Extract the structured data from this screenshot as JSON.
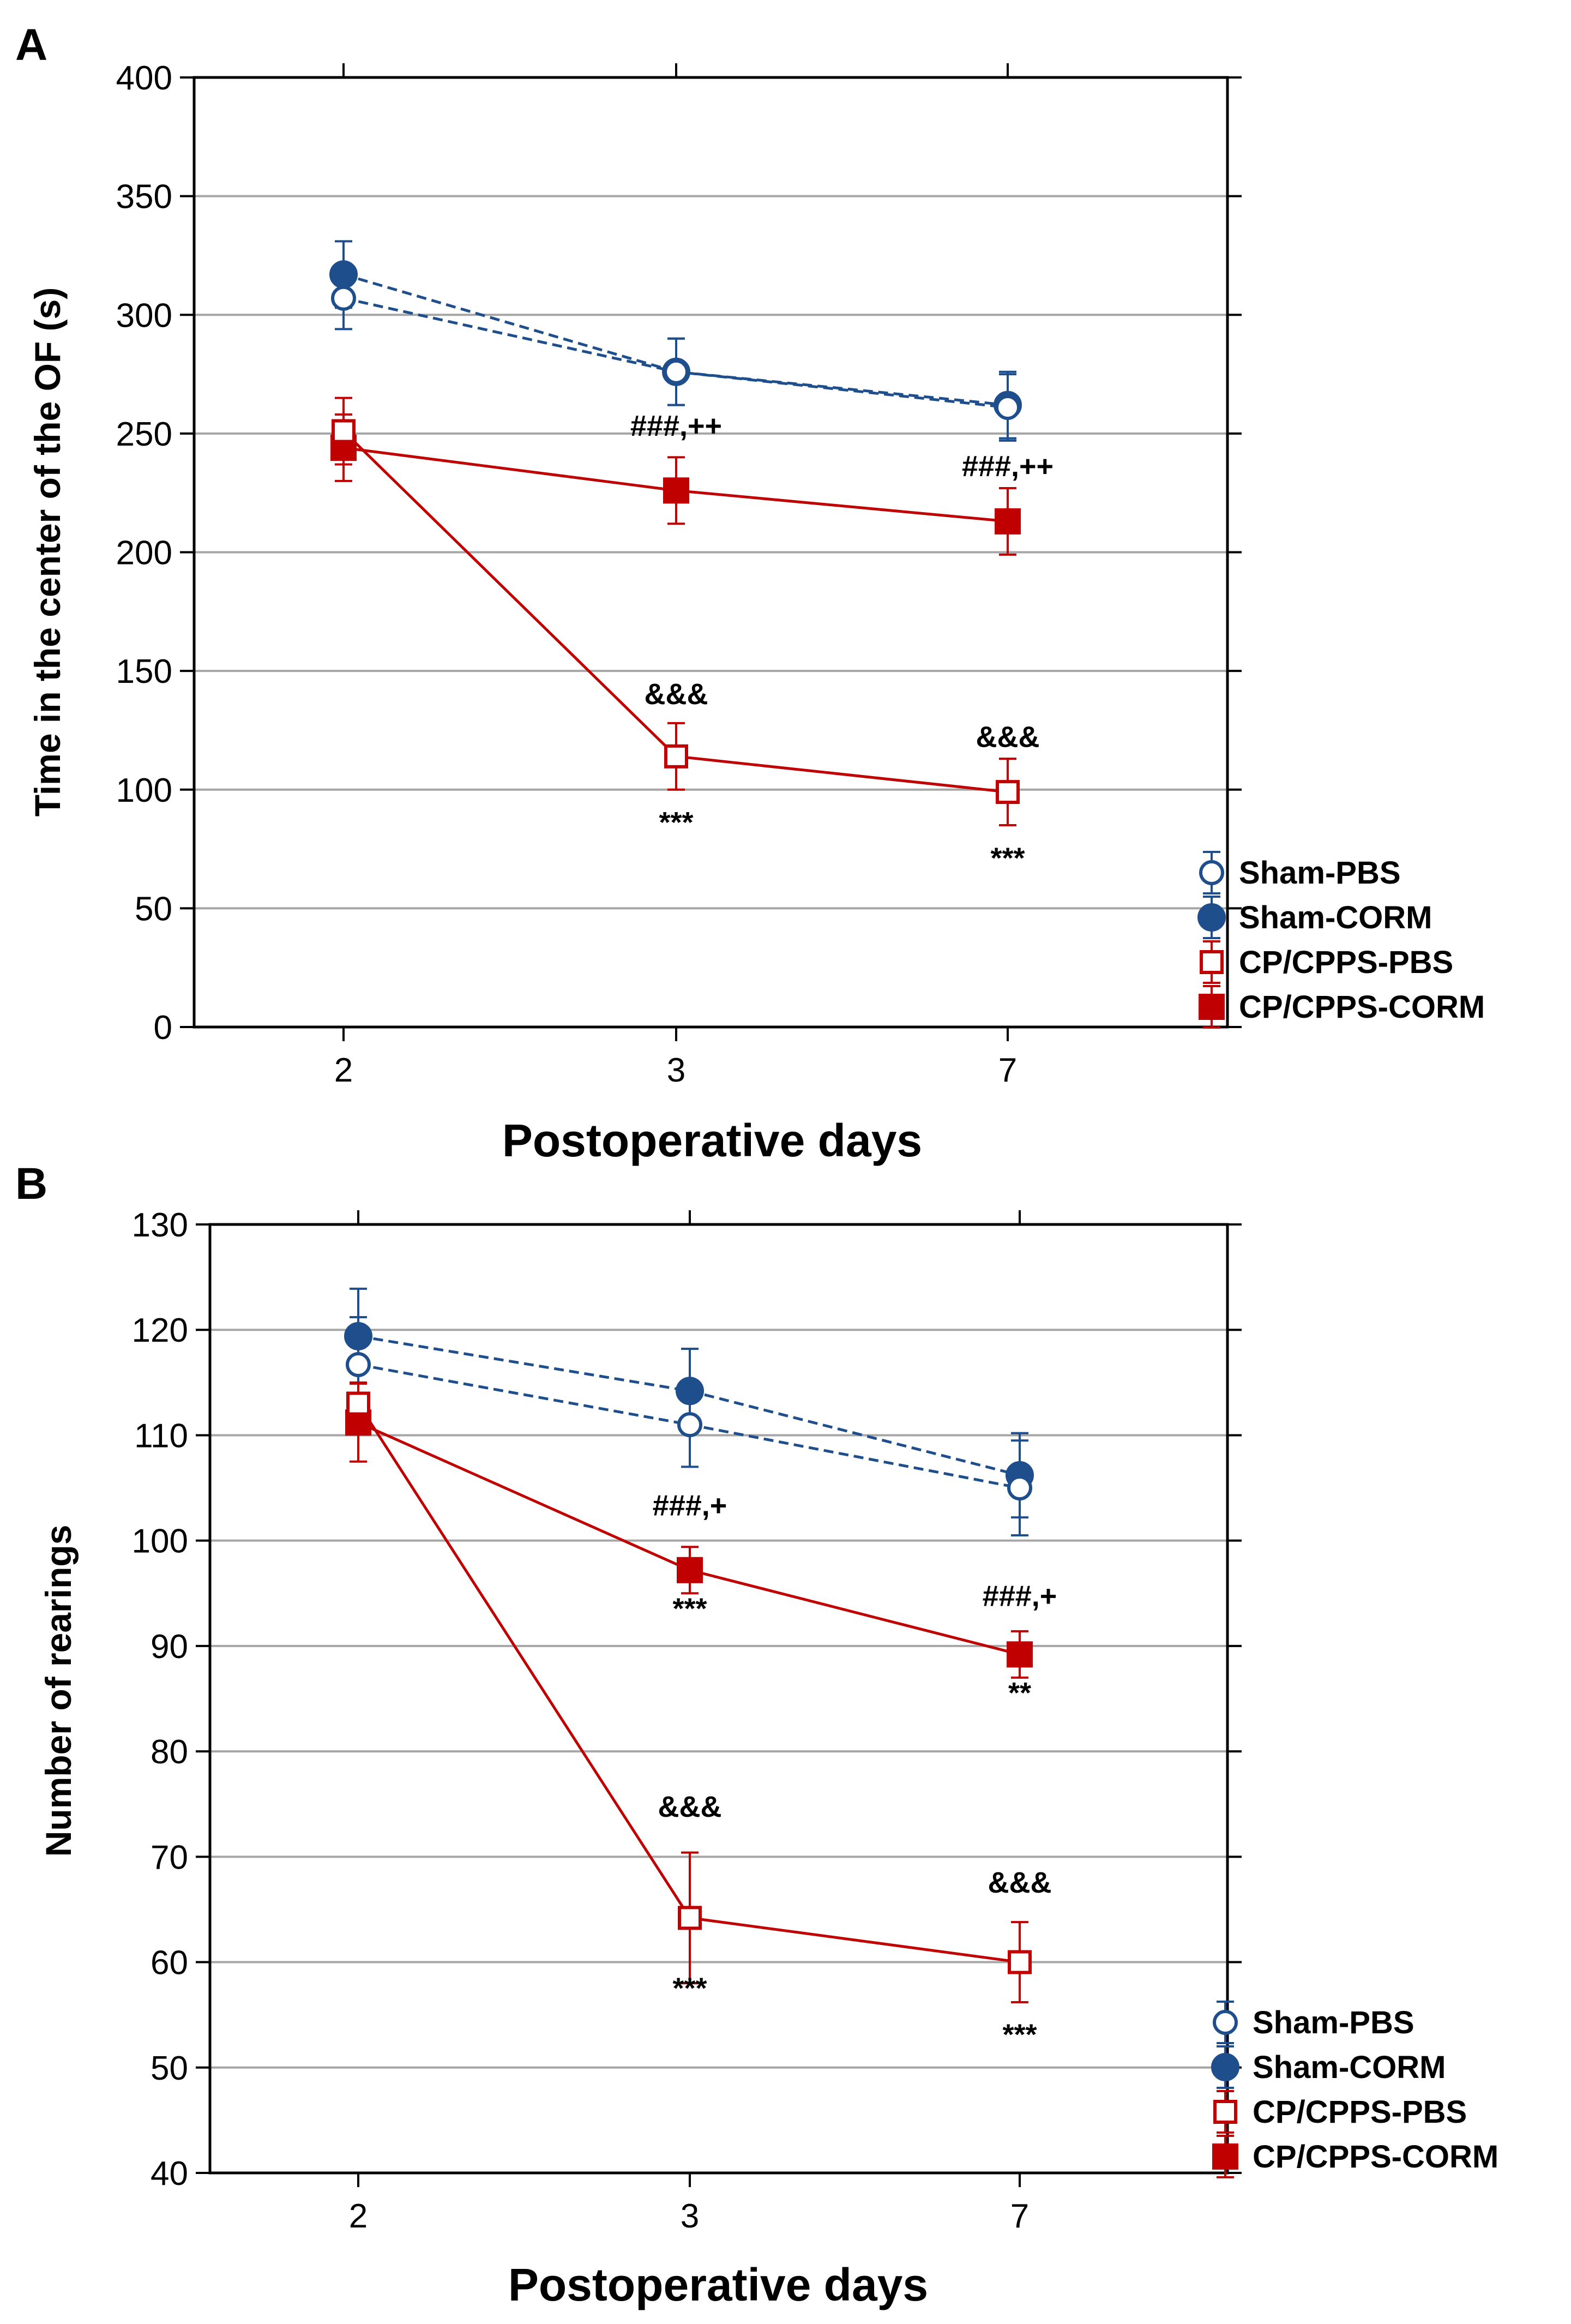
{
  "chart_data": [
    {
      "panel": "A",
      "type": "line",
      "xlabel": "Postoperative days",
      "ylabel": "Time in the center of the OF (s)",
      "categories": [
        "2",
        "3",
        "7"
      ],
      "ylim": [
        0,
        400
      ],
      "yticks": [
        0,
        50,
        100,
        150,
        200,
        250,
        300,
        350,
        400
      ],
      "grid": true,
      "legend_position": "bottom-right outside",
      "series": [
        {
          "name": "Sham-PBS",
          "key": "sham_pbs",
          "values": [
            307,
            276,
            261
          ],
          "errors": [
            13,
            14,
            14
          ]
        },
        {
          "name": "Sham-CORM",
          "key": "sham_corm",
          "values": [
            317,
            276,
            262
          ],
          "errors": [
            14,
            14,
            14
          ]
        },
        {
          "name": "CP/CPPS-PBS",
          "key": "cp_pbs",
          "values": [
            251,
            114,
            99
          ],
          "errors": [
            14,
            14,
            14
          ]
        },
        {
          "name": "CP/CPPS-CORM",
          "key": "cp_corm",
          "values": [
            244,
            226,
            213
          ],
          "errors": [
            14,
            14,
            14
          ]
        }
      ],
      "annotations": [
        {
          "text": "###,++",
          "x": "3",
          "y": 249
        },
        {
          "text": "###,++",
          "x": "7",
          "y": 232
        },
        {
          "text": "&&&",
          "x": "3",
          "y": 136
        },
        {
          "text": "&&&",
          "x": "7",
          "y": 118
        },
        {
          "text": "***",
          "x": "3",
          "y": 82
        },
        {
          "text": "***",
          "x": "7",
          "y": 67
        }
      ]
    },
    {
      "panel": "B",
      "type": "line",
      "xlabel": "Postoperative days",
      "ylabel": "Number of rearings",
      "categories": [
        "2",
        "3",
        "7"
      ],
      "ylim": [
        40,
        130
      ],
      "yticks": [
        40,
        50,
        60,
        70,
        80,
        90,
        100,
        110,
        120,
        130
      ],
      "grid": true,
      "legend_position": "bottom-right outside",
      "series": [
        {
          "name": "Sham-PBS",
          "key": "sham_pbs",
          "values": [
            116.7,
            111,
            105
          ],
          "errors": [
            4.5,
            4,
            4.5
          ]
        },
        {
          "name": "Sham-CORM",
          "key": "sham_corm",
          "values": [
            119.4,
            114.2,
            106.2
          ],
          "errors": [
            4.5,
            4,
            4
          ]
        },
        {
          "name": "CP/CPPS-PBS",
          "key": "cp_pbs",
          "values": [
            113,
            64.2,
            60
          ],
          "errors": [
            2,
            6.2,
            3.8
          ]
        },
        {
          "name": "CP/CPPS-CORM",
          "key": "cp_corm",
          "values": [
            111.2,
            97.2,
            89.2
          ],
          "errors": [
            3.7,
            2.2,
            2.2
          ]
        }
      ],
      "annotations": [
        {
          "text": "###,+",
          "x": "3",
          "y": 102.4
        },
        {
          "text": "###,+",
          "x": "7",
          "y": 93.8
        },
        {
          "text": "***",
          "x": "3",
          "y": 92.6
        },
        {
          "text": "**",
          "x": "7",
          "y": 84.6
        },
        {
          "text": "&&&",
          "x": "3",
          "y": 73.8
        },
        {
          "text": "&&&",
          "x": "7",
          "y": 66.6
        },
        {
          "text": "***",
          "x": "3",
          "y": 56.6
        },
        {
          "text": "***",
          "x": "7",
          "y": 52.2
        }
      ]
    }
  ],
  "colors": {
    "blue": "#1f4e8c",
    "red": "#c00000",
    "grid": "#a6a6a6"
  },
  "series_styles": {
    "sham_pbs": {
      "color": "#1f4e8c",
      "marker": "circle-open",
      "dash": true
    },
    "sham_corm": {
      "color": "#1f4e8c",
      "marker": "circle-filled",
      "dash": true
    },
    "cp_pbs": {
      "color": "#c00000",
      "marker": "square-open",
      "dash": false
    },
    "cp_corm": {
      "color": "#c00000",
      "marker": "square-filled",
      "dash": false
    }
  }
}
